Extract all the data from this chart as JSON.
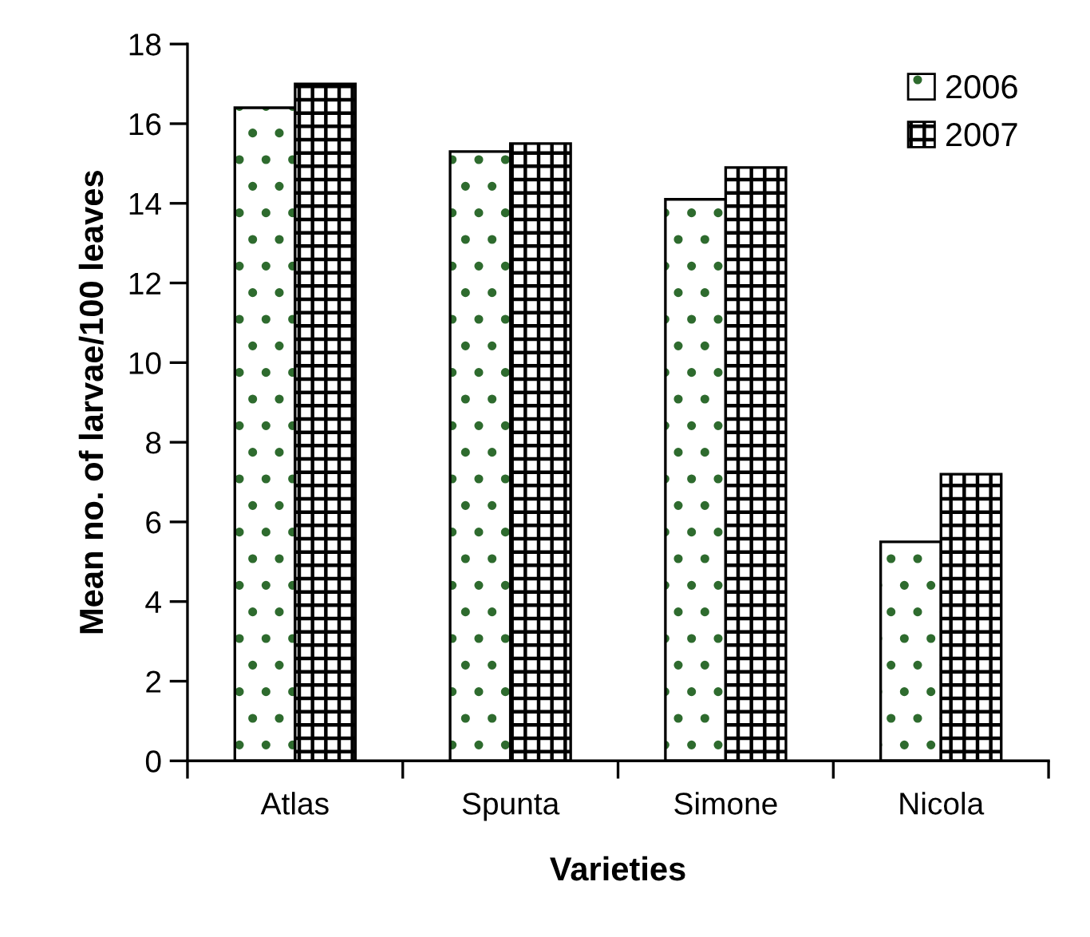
{
  "chart_data": {
    "type": "bar",
    "xlabel": "Varieties",
    "ylabel": "Mean no. of larvae/100 leaves",
    "categories": [
      "Atlas",
      "Spunta",
      "Simone",
      "Nicola"
    ],
    "series": [
      {
        "name": "2006",
        "color": "#000000",
        "values": [
          16.4,
          15.3,
          14.1,
          5.5
        ]
      },
      {
        "name": "2007",
        "color": "#000000",
        "values": [
          17.0,
          15.5,
          14.9,
          7.2
        ]
      }
    ],
    "ylim": [
      0,
      18
    ],
    "yticks": [
      0,
      2,
      4,
      6,
      8,
      10,
      12,
      14,
      16,
      18
    ],
    "grid": false,
    "legend": "top right"
  }
}
